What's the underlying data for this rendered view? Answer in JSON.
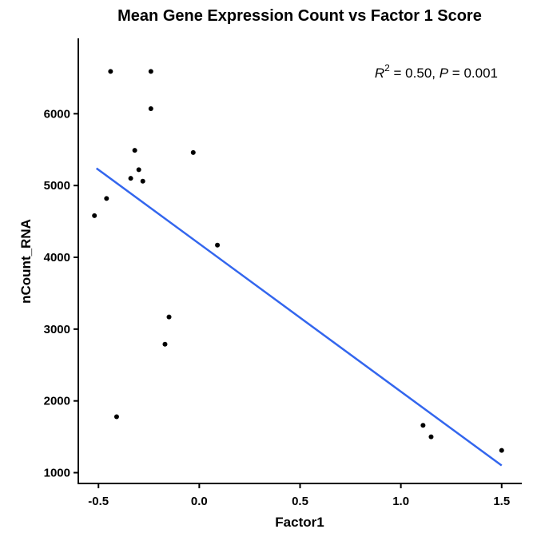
{
  "chart_data": {
    "type": "scatter",
    "title": "Mean Gene Expression Count vs Factor 1 Score",
    "xlabel": "Factor1",
    "ylabel": "nCount_RNA",
    "xlim": [
      -0.6,
      1.6
    ],
    "ylim": [
      850,
      7050
    ],
    "x_ticks": [
      -0.5,
      0.0,
      0.5,
      1.0,
      1.5
    ],
    "x_tick_labels": [
      "-0.5",
      "0.0",
      "0.5",
      "1.0",
      "1.5"
    ],
    "y_ticks": [
      1000,
      2000,
      3000,
      4000,
      5000,
      6000
    ],
    "y_tick_labels": [
      "1000",
      "2000",
      "3000",
      "4000",
      "5000",
      "6000"
    ],
    "points": [
      {
        "x": -0.44,
        "y": 6590
      },
      {
        "x": -0.24,
        "y": 6590
      },
      {
        "x": -0.24,
        "y": 6070
      },
      {
        "x": -0.32,
        "y": 5490
      },
      {
        "x": -0.3,
        "y": 5220
      },
      {
        "x": -0.34,
        "y": 5100
      },
      {
        "x": -0.28,
        "y": 5060
      },
      {
        "x": -0.46,
        "y": 4820
      },
      {
        "x": -0.52,
        "y": 4580
      },
      {
        "x": -0.03,
        "y": 5460
      },
      {
        "x": 0.09,
        "y": 4170
      },
      {
        "x": -0.15,
        "y": 3170
      },
      {
        "x": -0.17,
        "y": 2790
      },
      {
        "x": -0.41,
        "y": 1780
      },
      {
        "x": 1.11,
        "y": 1660
      },
      {
        "x": 1.15,
        "y": 1500
      },
      {
        "x": 1.5,
        "y": 1310
      }
    ],
    "fit_line": {
      "x1": -0.51,
      "y1": 5240,
      "x2": 1.5,
      "y2": 1100,
      "color": "#3366ee"
    },
    "point_color": "#000000",
    "annotation": {
      "r_symbol": "R",
      "r_exponent": "2",
      "r_value": " = 0.50, ",
      "p_symbol": "P",
      "p_value": " = 0.001"
    },
    "grid": false,
    "legend": "none"
  }
}
